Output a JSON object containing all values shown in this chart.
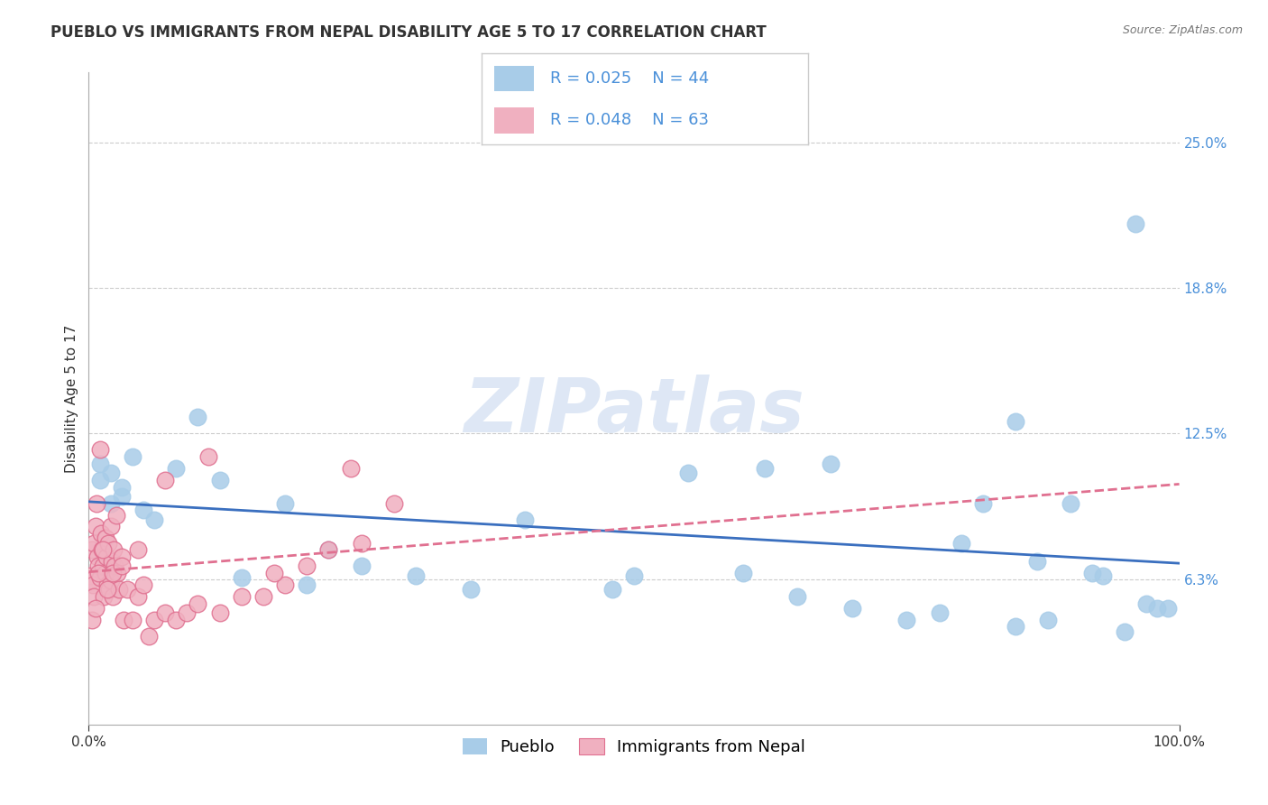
{
  "title": "PUEBLO VS IMMIGRANTS FROM NEPAL DISABILITY AGE 5 TO 17 CORRELATION CHART",
  "source_text": "Source: ZipAtlas.com",
  "ylabel": "Disability Age 5 to 17",
  "xlim": [
    0,
    100
  ],
  "ylim": [
    0,
    28
  ],
  "ytick_vals": [
    6.25,
    12.5,
    18.75,
    25.0
  ],
  "ytick_labels": [
    "6.3%",
    "12.5%",
    "18.8%",
    "25.0%"
  ],
  "xtick_vals": [
    0,
    100
  ],
  "xtick_labels": [
    "0.0%",
    "100.0%"
  ],
  "watermark": "ZIPatlas",
  "legend_r1": "R = 0.025",
  "legend_n1": "N = 44",
  "legend_r2": "R = 0.048",
  "legend_n2": "N = 63",
  "color_pueblo": "#a8cce8",
  "color_nepal": "#f0b0c0",
  "color_nepal_edge": "#e07090",
  "color_trendline_pueblo": "#3a6fbf",
  "color_trendline_nepal": "#e07090",
  "background_color": "#ffffff",
  "pueblo_x": [
    1,
    1,
    2,
    2,
    3,
    3,
    4,
    5,
    6,
    8,
    10,
    12,
    14,
    18,
    20,
    22,
    25,
    30,
    35,
    40,
    48,
    50,
    55,
    60,
    62,
    65,
    68,
    70,
    75,
    78,
    80,
    82,
    85,
    87,
    88,
    90,
    92,
    93,
    95,
    97,
    98,
    99,
    85,
    96
  ],
  "pueblo_y": [
    10.5,
    11.2,
    10.8,
    9.5,
    10.2,
    9.8,
    11.5,
    9.2,
    8.8,
    11.0,
    13.2,
    10.5,
    6.3,
    9.5,
    6.0,
    7.5,
    6.8,
    6.4,
    5.8,
    8.8,
    5.8,
    6.4,
    10.8,
    6.5,
    11.0,
    5.5,
    11.2,
    5.0,
    4.5,
    4.8,
    7.8,
    9.5,
    4.2,
    7.0,
    4.5,
    9.5,
    6.5,
    6.4,
    4.0,
    5.2,
    5.0,
    5.0,
    13.0,
    21.5
  ],
  "nepal_x": [
    0.1,
    0.2,
    0.3,
    0.4,
    0.5,
    0.5,
    0.6,
    0.7,
    0.8,
    0.9,
    1.0,
    1.0,
    1.1,
    1.2,
    1.3,
    1.4,
    1.5,
    1.5,
    1.6,
    1.7,
    1.8,
    1.9,
    2.0,
    2.0,
    2.1,
    2.2,
    2.3,
    2.4,
    2.5,
    2.6,
    2.8,
    3.0,
    3.2,
    3.5,
    4.0,
    4.5,
    5.0,
    5.5,
    6.0,
    7.0,
    8.0,
    9.0,
    10.0,
    12.0,
    14.0,
    16.0,
    18.0,
    20.0,
    22.0,
    25.0,
    28.0,
    0.3,
    0.6,
    0.9,
    1.3,
    1.7,
    2.2,
    3.0,
    4.5,
    7.0,
    11.0,
    17.0,
    24.0
  ],
  "nepal_y": [
    6.4,
    6.2,
    7.5,
    6.0,
    7.8,
    5.5,
    8.5,
    9.5,
    7.2,
    6.8,
    11.8,
    6.3,
    8.2,
    7.5,
    6.8,
    5.5,
    8.0,
    6.5,
    7.2,
    6.0,
    7.8,
    5.8,
    8.5,
    6.2,
    7.0,
    5.5,
    7.5,
    6.8,
    9.0,
    6.5,
    5.8,
    7.2,
    4.5,
    5.8,
    4.5,
    5.5,
    6.0,
    3.8,
    4.5,
    4.8,
    4.5,
    4.8,
    5.2,
    4.8,
    5.5,
    5.5,
    6.0,
    6.8,
    7.5,
    7.8,
    9.5,
    4.5,
    5.0,
    6.5,
    7.5,
    5.8,
    6.5,
    6.8,
    7.5,
    10.5,
    11.5,
    6.5,
    11.0
  ],
  "title_fontsize": 12,
  "axis_label_fontsize": 11,
  "tick_fontsize": 11,
  "watermark_fontsize": 60,
  "legend_fontsize": 13
}
